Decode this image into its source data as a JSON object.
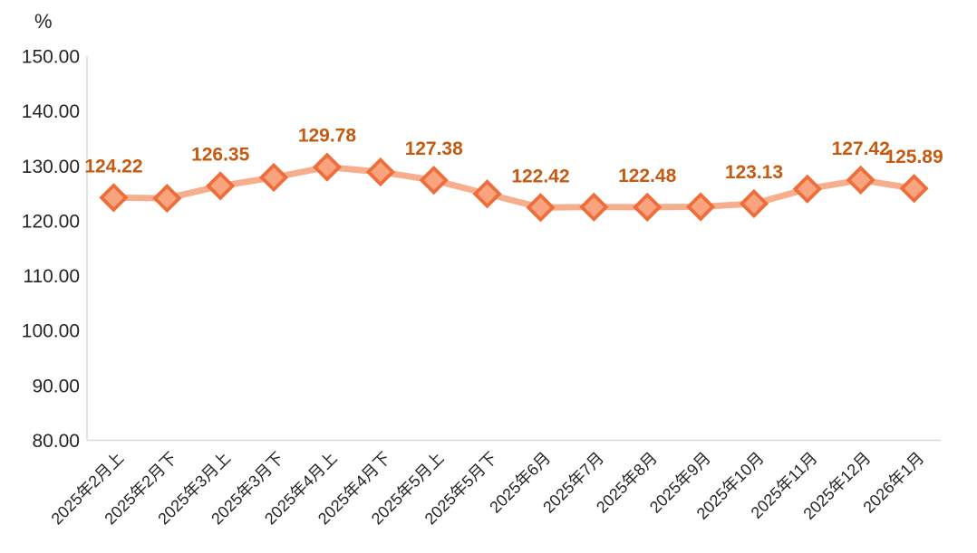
{
  "chart_data": {
    "type": "line",
    "title": "",
    "unit_label": "%",
    "legend": "none",
    "grid": "off",
    "y_axis": {
      "min": 80,
      "max": 150,
      "step": 10,
      "ticks": [
        {
          "value": 80,
          "label": "80.00"
        },
        {
          "value": 90,
          "label": "90.00"
        },
        {
          "value": 100,
          "label": "100.00"
        },
        {
          "value": 110,
          "label": "110.00"
        },
        {
          "value": 120,
          "label": "120.00"
        },
        {
          "value": 130,
          "label": "130.00"
        },
        {
          "value": 140,
          "label": "140.00"
        },
        {
          "value": 150,
          "label": "150.00"
        }
      ]
    },
    "x_axis": {
      "label_rotation_deg": -45
    },
    "points": [
      {
        "category": "2025年2月上",
        "value": 124.22,
        "label": "124.22"
      },
      {
        "category": "2025年2月下",
        "value": 124.1,
        "label": null
      },
      {
        "category": "2025年3月上",
        "value": 126.35,
        "label": "126.35"
      },
      {
        "category": "2025年3月下",
        "value": 127.9,
        "label": null
      },
      {
        "category": "2025年4月上",
        "value": 129.78,
        "label": "129.78"
      },
      {
        "category": "2025年4月下",
        "value": 128.9,
        "label": null
      },
      {
        "category": "2025年5月上",
        "value": 127.38,
        "label": "127.38"
      },
      {
        "category": "2025年5月下",
        "value": 124.9,
        "label": null
      },
      {
        "category": "2025年6月",
        "value": 122.42,
        "label": "122.42"
      },
      {
        "category": "2025年7月",
        "value": 122.5,
        "label": null
      },
      {
        "category": "2025年8月",
        "value": 122.48,
        "label": "122.48"
      },
      {
        "category": "2025年9月",
        "value": 122.55,
        "label": null
      },
      {
        "category": "2025年10月",
        "value": 123.13,
        "label": "123.13"
      },
      {
        "category": "2025年11月",
        "value": 125.8,
        "label": null
      },
      {
        "category": "2025年12月",
        "value": 127.42,
        "label": "127.42"
      },
      {
        "category": "2026年1月",
        "value": 125.89,
        "label": "125.89"
      }
    ],
    "colors": {
      "background": "#FFFFFF",
      "line": "#F6AE8D",
      "marker_fill": "#F9A47F",
      "marker_stroke": "#EE6E3B",
      "data_label": "#C55A11",
      "axis_line": "#D9D9D9",
      "tick_text": "#262626"
    }
  }
}
